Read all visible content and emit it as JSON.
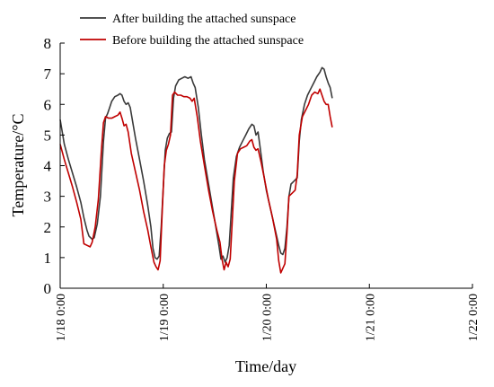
{
  "chart_data": {
    "type": "line",
    "title": "",
    "xlabel": "Time/day",
    "ylabel": "Temperature/°C",
    "ylim": [
      0,
      8
    ],
    "yticks": [
      0,
      1,
      2,
      3,
      4,
      5,
      6,
      7,
      8
    ],
    "xlim": [
      0,
      4
    ],
    "xticks": [
      {
        "x": 0,
        "label": "1/18 0:00"
      },
      {
        "x": 1,
        "label": "1/19 0:00"
      },
      {
        "x": 2,
        "label": "1/20 0:00"
      },
      {
        "x": 3,
        "label": "1/21 0:00"
      },
      {
        "x": 4,
        "label": "1/22 0:00"
      }
    ],
    "grid": false,
    "legend": "top-left",
    "series": [
      {
        "name": "After building the attached sunspace",
        "color": "#3a3a3a",
        "points": [
          [
            0.0,
            5.5
          ],
          [
            0.04,
            4.7
          ],
          [
            0.08,
            4.2
          ],
          [
            0.12,
            3.75
          ],
          [
            0.16,
            3.3
          ],
          [
            0.2,
            2.8
          ],
          [
            0.23,
            2.3
          ],
          [
            0.26,
            1.9
          ],
          [
            0.28,
            1.7
          ],
          [
            0.31,
            1.6
          ],
          [
            0.33,
            1.65
          ],
          [
            0.36,
            2.1
          ],
          [
            0.39,
            3.0
          ],
          [
            0.42,
            4.8
          ],
          [
            0.44,
            5.55
          ],
          [
            0.46,
            5.7
          ],
          [
            0.48,
            5.9
          ],
          [
            0.5,
            6.1
          ],
          [
            0.53,
            6.25
          ],
          [
            0.56,
            6.3
          ],
          [
            0.58,
            6.35
          ],
          [
            0.6,
            6.3
          ],
          [
            0.62,
            6.1
          ],
          [
            0.64,
            6.0
          ],
          [
            0.66,
            6.05
          ],
          [
            0.68,
            5.9
          ],
          [
            0.7,
            5.5
          ],
          [
            0.73,
            4.9
          ],
          [
            0.77,
            4.2
          ],
          [
            0.81,
            3.5
          ],
          [
            0.85,
            2.7
          ],
          [
            0.88,
            2.0
          ],
          [
            0.9,
            1.3
          ],
          [
            0.92,
            1.0
          ],
          [
            0.94,
            0.95
          ],
          [
            0.96,
            1.05
          ],
          [
            0.98,
            2.0
          ],
          [
            1.0,
            3.3
          ],
          [
            1.02,
            4.5
          ],
          [
            1.04,
            4.9
          ],
          [
            1.06,
            5.05
          ],
          [
            1.08,
            5.1
          ],
          [
            1.1,
            6.2
          ],
          [
            1.12,
            6.6
          ],
          [
            1.15,
            6.8
          ],
          [
            1.18,
            6.85
          ],
          [
            1.21,
            6.9
          ],
          [
            1.24,
            6.85
          ],
          [
            1.27,
            6.9
          ],
          [
            1.29,
            6.7
          ],
          [
            1.31,
            6.55
          ],
          [
            1.34,
            5.9
          ],
          [
            1.37,
            5.0
          ],
          [
            1.4,
            4.2
          ],
          [
            1.44,
            3.4
          ],
          [
            1.48,
            2.6
          ],
          [
            1.51,
            2.0
          ],
          [
            1.54,
            1.4
          ],
          [
            1.56,
            0.95
          ],
          [
            1.58,
            1.05
          ],
          [
            1.6,
            0.85
          ],
          [
            1.62,
            1.0
          ],
          [
            1.64,
            1.4
          ],
          [
            1.66,
            2.5
          ],
          [
            1.68,
            3.6
          ],
          [
            1.71,
            4.3
          ],
          [
            1.74,
            4.6
          ],
          [
            1.77,
            4.8
          ],
          [
            1.8,
            5.0
          ],
          [
            1.83,
            5.2
          ],
          [
            1.86,
            5.35
          ],
          [
            1.88,
            5.3
          ],
          [
            1.9,
            5.0
          ],
          [
            1.92,
            5.1
          ],
          [
            1.94,
            4.6
          ],
          [
            1.97,
            3.8
          ],
          [
            2.0,
            3.2
          ],
          [
            2.04,
            2.6
          ],
          [
            2.08,
            2.0
          ],
          [
            2.12,
            1.4
          ],
          [
            2.14,
            1.15
          ],
          [
            2.16,
            1.1
          ],
          [
            2.18,
            1.3
          ],
          [
            2.2,
            2.0
          ],
          [
            2.22,
            3.0
          ],
          [
            2.24,
            3.4
          ],
          [
            2.27,
            3.5
          ],
          [
            2.3,
            3.6
          ],
          [
            2.32,
            4.8
          ],
          [
            2.34,
            5.5
          ],
          [
            2.37,
            6.0
          ],
          [
            2.4,
            6.3
          ],
          [
            2.43,
            6.5
          ],
          [
            2.46,
            6.7
          ],
          [
            2.49,
            6.9
          ],
          [
            2.52,
            7.05
          ],
          [
            2.54,
            7.2
          ],
          [
            2.56,
            7.15
          ],
          [
            2.58,
            6.9
          ],
          [
            2.6,
            6.7
          ],
          [
            2.62,
            6.55
          ],
          [
            2.64,
            6.2
          ]
        ]
      },
      {
        "name": "Before building the attached sunspace",
        "color": "#c00000",
        "points": [
          [
            0.0,
            4.7
          ],
          [
            0.04,
            4.2
          ],
          [
            0.08,
            3.75
          ],
          [
            0.12,
            3.3
          ],
          [
            0.16,
            2.8
          ],
          [
            0.2,
            2.25
          ],
          [
            0.23,
            1.45
          ],
          [
            0.26,
            1.4
          ],
          [
            0.29,
            1.35
          ],
          [
            0.31,
            1.5
          ],
          [
            0.34,
            2.0
          ],
          [
            0.37,
            2.9
          ],
          [
            0.4,
            4.5
          ],
          [
            0.42,
            5.4
          ],
          [
            0.44,
            5.6
          ],
          [
            0.47,
            5.55
          ],
          [
            0.5,
            5.55
          ],
          [
            0.53,
            5.6
          ],
          [
            0.56,
            5.65
          ],
          [
            0.58,
            5.75
          ],
          [
            0.6,
            5.55
          ],
          [
            0.62,
            5.3
          ],
          [
            0.64,
            5.35
          ],
          [
            0.66,
            5.1
          ],
          [
            0.69,
            4.4
          ],
          [
            0.73,
            3.8
          ],
          [
            0.77,
            3.2
          ],
          [
            0.81,
            2.5
          ],
          [
            0.85,
            1.9
          ],
          [
            0.88,
            1.35
          ],
          [
            0.91,
            0.85
          ],
          [
            0.93,
            0.7
          ],
          [
            0.95,
            0.6
          ],
          [
            0.97,
            0.9
          ],
          [
            0.99,
            2.5
          ],
          [
            1.01,
            4.0
          ],
          [
            1.03,
            4.5
          ],
          [
            1.05,
            4.7
          ],
          [
            1.07,
            5.0
          ],
          [
            1.09,
            6.3
          ],
          [
            1.11,
            6.4
          ],
          [
            1.14,
            6.3
          ],
          [
            1.17,
            6.3
          ],
          [
            1.2,
            6.25
          ],
          [
            1.23,
            6.25
          ],
          [
            1.26,
            6.2
          ],
          [
            1.28,
            6.1
          ],
          [
            1.3,
            6.2
          ],
          [
            1.33,
            5.6
          ],
          [
            1.36,
            4.8
          ],
          [
            1.4,
            4.0
          ],
          [
            1.44,
            3.2
          ],
          [
            1.48,
            2.5
          ],
          [
            1.52,
            1.9
          ],
          [
            1.55,
            1.5
          ],
          [
            1.57,
            0.95
          ],
          [
            1.59,
            0.6
          ],
          [
            1.61,
            0.85
          ],
          [
            1.63,
            0.7
          ],
          [
            1.65,
            0.95
          ],
          [
            1.67,
            2.2
          ],
          [
            1.69,
            3.5
          ],
          [
            1.72,
            4.4
          ],
          [
            1.75,
            4.55
          ],
          [
            1.78,
            4.6
          ],
          [
            1.81,
            4.65
          ],
          [
            1.84,
            4.8
          ],
          [
            1.86,
            4.85
          ],
          [
            1.88,
            4.6
          ],
          [
            1.9,
            4.5
          ],
          [
            1.92,
            4.55
          ],
          [
            1.95,
            4.1
          ],
          [
            1.98,
            3.6
          ],
          [
            2.02,
            2.9
          ],
          [
            2.06,
            2.3
          ],
          [
            2.1,
            1.6
          ],
          [
            2.12,
            0.9
          ],
          [
            2.14,
            0.5
          ],
          [
            2.16,
            0.65
          ],
          [
            2.18,
            0.8
          ],
          [
            2.2,
            1.8
          ],
          [
            2.22,
            3.0
          ],
          [
            2.25,
            3.1
          ],
          [
            2.28,
            3.2
          ],
          [
            2.3,
            3.7
          ],
          [
            2.32,
            5.0
          ],
          [
            2.35,
            5.6
          ],
          [
            2.38,
            5.8
          ],
          [
            2.41,
            6.0
          ],
          [
            2.44,
            6.3
          ],
          [
            2.47,
            6.4
          ],
          [
            2.5,
            6.35
          ],
          [
            2.52,
            6.5
          ],
          [
            2.54,
            6.3
          ],
          [
            2.56,
            6.1
          ],
          [
            2.58,
            6.0
          ],
          [
            2.6,
            6.0
          ],
          [
            2.62,
            5.6
          ],
          [
            2.64,
            5.25
          ]
        ]
      }
    ]
  }
}
